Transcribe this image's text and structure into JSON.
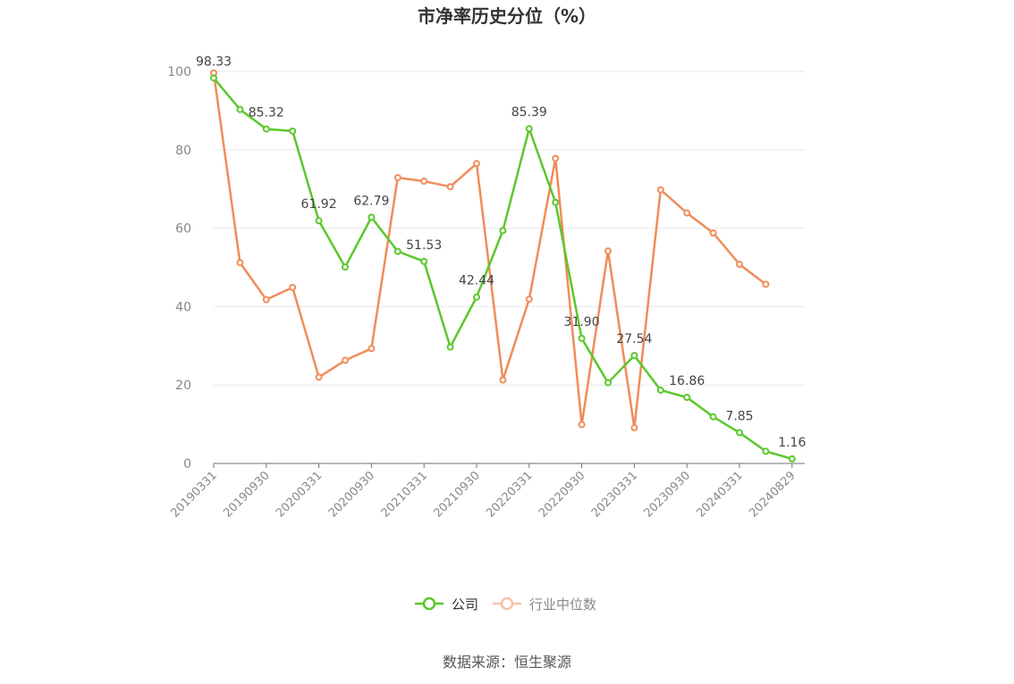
{
  "chart_data": {
    "type": "line",
    "title": "市净率历史分位（%）",
    "ylim": [
      0,
      100
    ],
    "yticks": [
      "0",
      "20",
      "40",
      "60",
      "80",
      "100"
    ],
    "xtick_labels": [
      "20190331",
      "20190930",
      "20200331",
      "20200930",
      "20210331",
      "20210930",
      "20220331",
      "20220930",
      "20230331",
      "20230930",
      "20240331",
      "20240829"
    ],
    "grid": true,
    "legend_position": "bottom-center",
    "series": [
      {
        "name": "公司",
        "color": "#5bc72b",
        "values": [
          98.33,
          90.3,
          85.32,
          84.8,
          61.92,
          50.1,
          62.79,
          54.1,
          51.53,
          29.7,
          42.44,
          59.4,
          85.39,
          66.6,
          31.9,
          20.6,
          27.54,
          18.7,
          16.86,
          11.9,
          7.85,
          3.1,
          1.16
        ]
      },
      {
        "name": "行业中位数",
        "color": "#f08c5a",
        "values": [
          99.6,
          51.2,
          41.8,
          44.9,
          22.0,
          26.3,
          29.3,
          72.9,
          72.0,
          70.6,
          76.5,
          21.3,
          41.9,
          77.8,
          9.9,
          54.2,
          9.1,
          69.8,
          63.9,
          58.8,
          50.8,
          45.7
        ]
      }
    ],
    "data_labels": [
      {
        "series": 0,
        "index": 0,
        "text": "98.33"
      },
      {
        "series": 0,
        "index": 2,
        "text": "85.32"
      },
      {
        "series": 0,
        "index": 4,
        "text": "61.92"
      },
      {
        "series": 0,
        "index": 6,
        "text": "62.79"
      },
      {
        "series": 0,
        "index": 8,
        "text": "51.53"
      },
      {
        "series": 0,
        "index": 10,
        "text": "42.44"
      },
      {
        "series": 0,
        "index": 12,
        "text": "85.39"
      },
      {
        "series": 0,
        "index": 14,
        "text": "31.90"
      },
      {
        "series": 0,
        "index": 16,
        "text": "27.54"
      },
      {
        "series": 0,
        "index": 18,
        "text": "16.86"
      },
      {
        "series": 0,
        "index": 20,
        "text": "7.85"
      },
      {
        "series": 0,
        "index": 22,
        "text": "1.16"
      }
    ]
  },
  "legend": {
    "items": [
      {
        "label": "公司",
        "color": "#5bc72b",
        "active": true
      },
      {
        "label": "行业中位数",
        "color": "#f7c2a8",
        "active": false
      }
    ]
  },
  "source": "数据来源：恒生聚源"
}
